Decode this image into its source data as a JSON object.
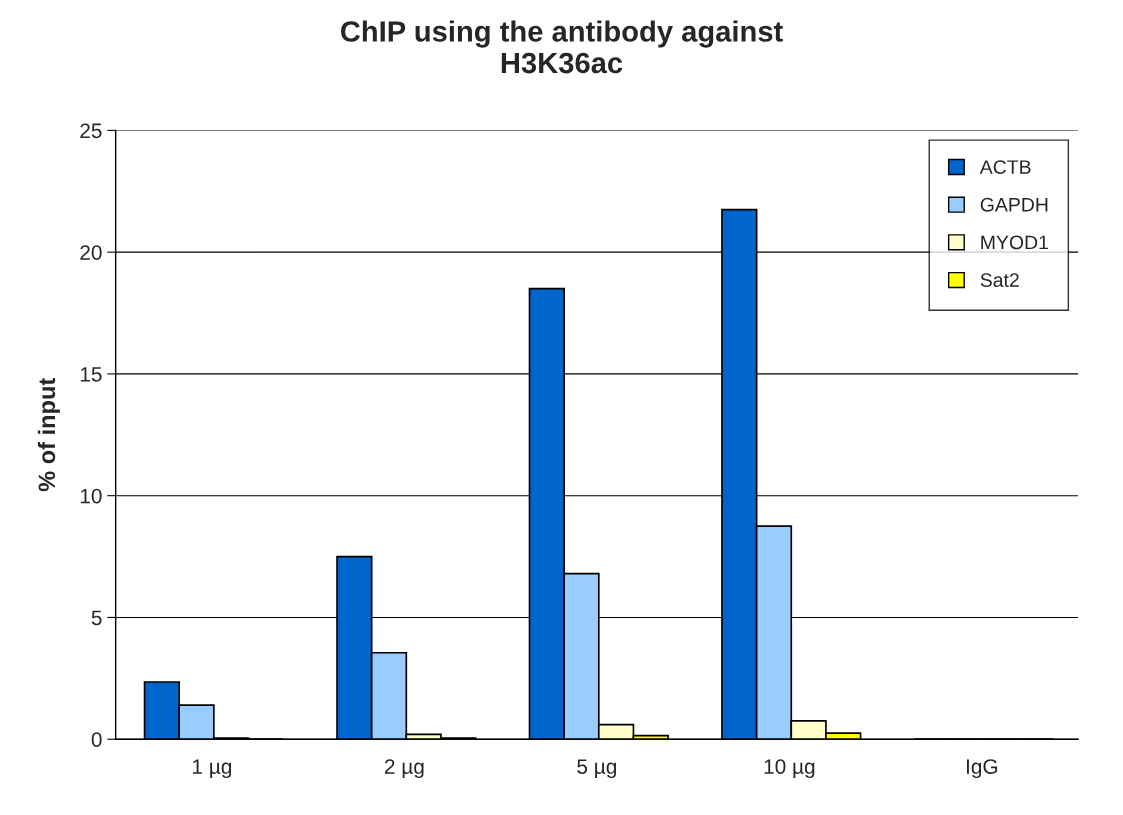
{
  "chart_data": {
    "type": "bar",
    "title": "ChIP using the antibody against\nH3K36ac",
    "ylabel": "% of input",
    "categories": [
      "1 µg",
      "2 µg",
      "5 µg",
      "10 µg",
      "IgG"
    ],
    "series": [
      {
        "name": "ACTB",
        "color": "#0066cc",
        "values": [
          2.35,
          7.5,
          18.5,
          21.75,
          0
        ]
      },
      {
        "name": "GAPDH",
        "color": "#99ccff",
        "values": [
          1.4,
          3.55,
          6.8,
          8.75,
          0
        ]
      },
      {
        "name": "MYOD1",
        "color": "#ffffcc",
        "values": [
          0.05,
          0.2,
          0.6,
          0.75,
          0
        ]
      },
      {
        "name": "Sat2",
        "color": "#ffff00",
        "values": [
          0,
          0.05,
          0.15,
          0.25,
          0
        ]
      }
    ],
    "ylim": [
      0,
      25
    ],
    "yticks": [
      0,
      5,
      10,
      15,
      20,
      25
    ],
    "grid": "y",
    "legend": "top right"
  }
}
